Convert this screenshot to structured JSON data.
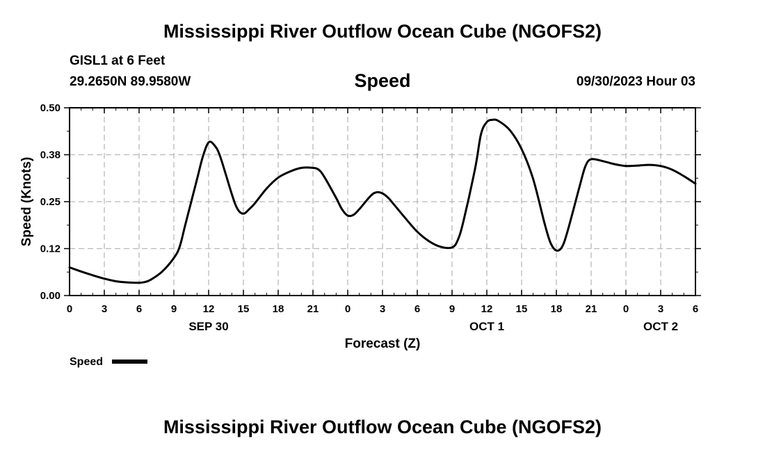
{
  "header": {
    "title": "Mississippi River Outflow Ocean Cube (NGOFS2)",
    "station": "GISL1 at 6 Feet",
    "coordinates": "29.2650N  89.9580W",
    "variable": "Speed",
    "datetime": "09/30/2023 Hour 03"
  },
  "footer": {
    "title": "Mississippi River Outflow Ocean Cube (NGOFS2)"
  },
  "chart_data": {
    "type": "line",
    "title": "Speed",
    "xlabel": "Forecast (Z)",
    "ylabel": "Speed (Knots)",
    "xlim": [
      0,
      54
    ],
    "ylim": [
      0,
      0.5
    ],
    "grid": true,
    "x_tick_positions": [
      0,
      3,
      6,
      9,
      12,
      15,
      18,
      21,
      24,
      27,
      30,
      33,
      36,
      39,
      42,
      45,
      48,
      51,
      54
    ],
    "x_tick_labels": [
      "0",
      "3",
      "6",
      "9",
      "12",
      "15",
      "18",
      "21",
      "0",
      "3",
      "6",
      "9",
      "12",
      "15",
      "18",
      "21",
      "0",
      "3",
      "6"
    ],
    "y_ticks": [
      0.0,
      0.125,
      0.25,
      0.375,
      0.5
    ],
    "y_tick_labels": [
      "0.00",
      "0.12",
      "0.25",
      "0.38",
      "0.50"
    ],
    "date_labels": [
      {
        "x": 12,
        "label": "SEP 30"
      },
      {
        "x": 36,
        "label": "OCT 1"
      },
      {
        "x": 51,
        "label": "OCT 2"
      }
    ],
    "legend": {
      "label": "Speed",
      "position": "bottom-left"
    },
    "series": [
      {
        "name": "Speed",
        "color": "#000000",
        "x": [
          0,
          1,
          2,
          3,
          4,
          5,
          6,
          6.5,
          7,
          8,
          9,
          9.5,
          10,
          11,
          11.5,
          12,
          12.5,
          13,
          14,
          14.5,
          15,
          15.5,
          16,
          17,
          18,
          19,
          20,
          21,
          21.5,
          22,
          23,
          23.5,
          24,
          24.5,
          25,
          26,
          26.5,
          27,
          27.5,
          28,
          29,
          30,
          31,
          32,
          33,
          33.5,
          34,
          35,
          35.5,
          36,
          36.5,
          37,
          38,
          39,
          40,
          41,
          41.5,
          42,
          42.5,
          43,
          44,
          44.5,
          45,
          46,
          47,
          48,
          49,
          50,
          51,
          52,
          53,
          54
        ],
        "values": [
          0.075,
          0.064,
          0.054,
          0.045,
          0.038,
          0.035,
          0.034,
          0.036,
          0.042,
          0.064,
          0.1,
          0.13,
          0.19,
          0.31,
          0.37,
          0.408,
          0.4,
          0.37,
          0.27,
          0.23,
          0.218,
          0.23,
          0.246,
          0.285,
          0.314,
          0.33,
          0.34,
          0.34,
          0.335,
          0.315,
          0.26,
          0.23,
          0.213,
          0.215,
          0.23,
          0.266,
          0.275,
          0.272,
          0.26,
          0.242,
          0.205,
          0.17,
          0.145,
          0.13,
          0.128,
          0.148,
          0.2,
          0.34,
          0.43,
          0.462,
          0.468,
          0.465,
          0.44,
          0.39,
          0.31,
          0.19,
          0.14,
          0.12,
          0.13,
          0.175,
          0.29,
          0.344,
          0.363,
          0.358,
          0.35,
          0.345,
          0.346,
          0.348,
          0.345,
          0.335,
          0.318,
          0.298
        ]
      }
    ]
  }
}
